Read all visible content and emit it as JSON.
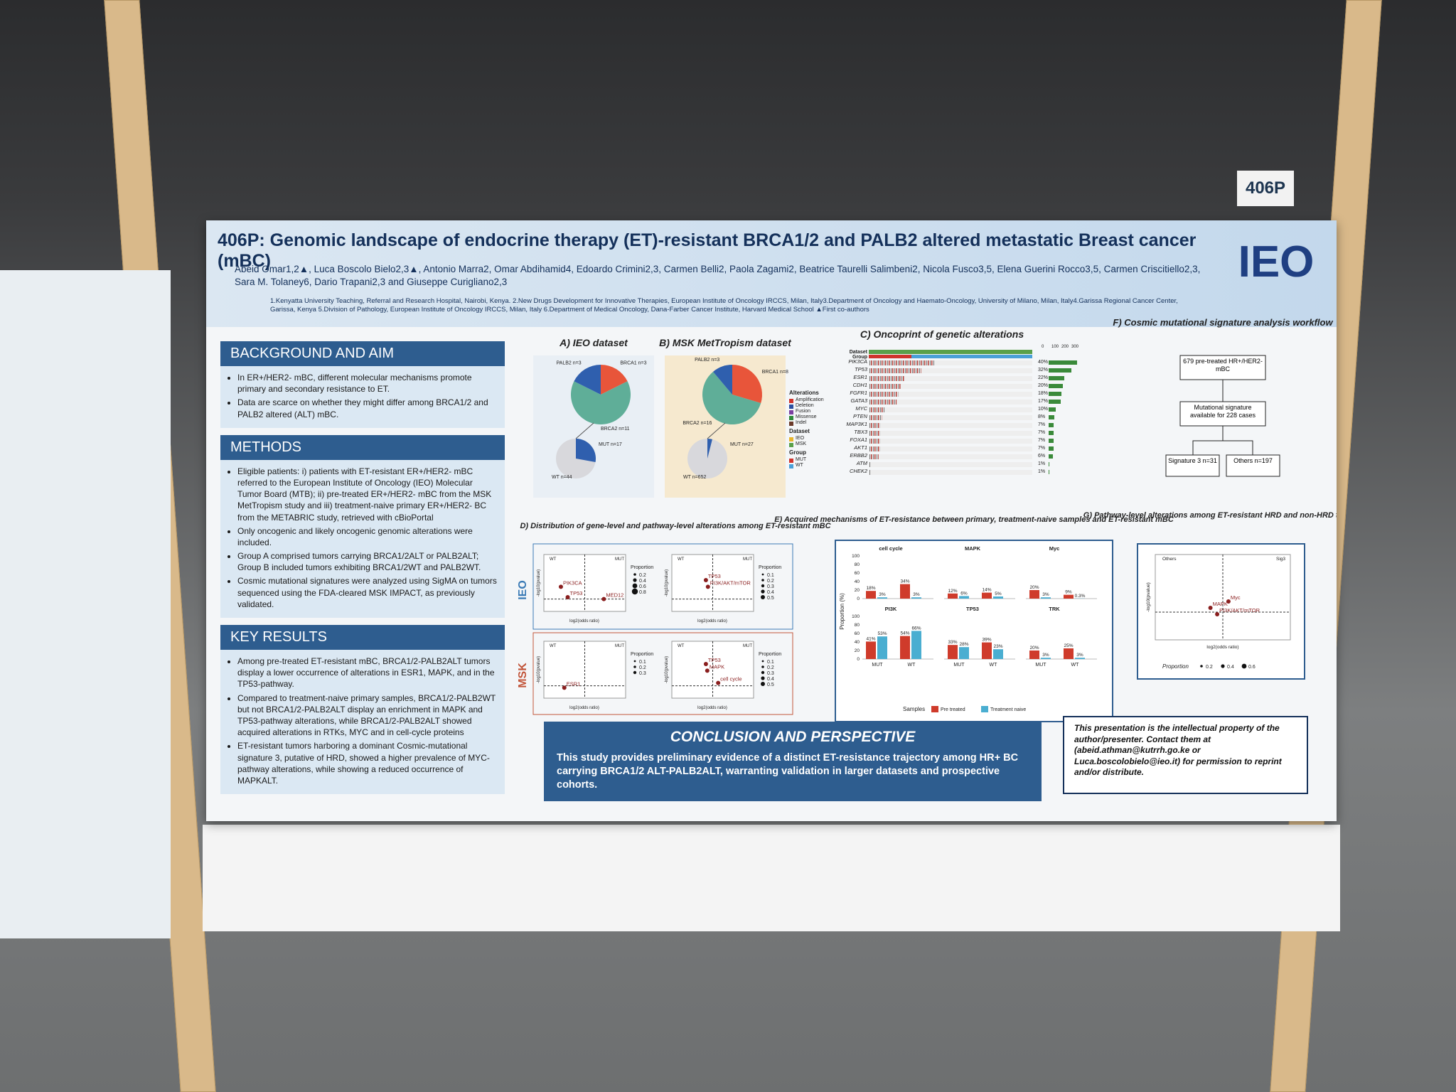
{
  "booth_label": "406P",
  "header": {
    "title": "406P: Genomic landscape of endocrine therapy (ET)-resistant BRCA1/2 and PALB2 altered metastatic Breast cancer (mBC)",
    "authors": "Abeid Omar1,2▲, Luca Boscolo Bielo2,3▲, Antonio Marra2, Omar Abdihamid4, Edoardo Crimini2,3, Carmen Belli2, Paola Zagami2, Beatrice Taurelli Salimbeni2, Nicola Fusco3,5, Elena Guerini Rocco3,5, Carmen Criscitiello2,3, Sara M. Tolaney6, Dario Trapani2,3 and Giuseppe Curigliano2,3",
    "affiliations": "1.Kenyatta University Teaching, Referral and Research Hospital, Nairobi, Kenya. 2.New Drugs Development for Innovative Therapies, European Institute of Oncology IRCCS, Milan, Italy3.Department of Oncology and Haemato-Oncology, University of Milano, Milan, Italy4.Garissa Regional Cancer Center, Garissa, Kenya 5.Division of Pathology, European Institute of Oncology IRCCS, Milan, Italy 6.Department of Medical Oncology, Dana-Farber Cancer Institute, Harvard Medical School ▲First co-authors",
    "logo": "IEO"
  },
  "sections": [
    {
      "heading": "BACKGROUND AND AIM",
      "bullets": [
        "In ER+/HER2- mBC, different molecular mechanisms promote primary and secondary resistance to ET.",
        "Data are scarce on whether they might differ among BRCA1/2 and PALB2 altered (ALT) mBC."
      ]
    },
    {
      "heading": "METHODS",
      "bullets": [
        "Eligible patients: i) patients with ET-resistant ER+/HER2- mBC referred to the European Institute of Oncology (IEO) Molecular Tumor Board (MTB); ii) pre-treated ER+/HER2- mBC from the MSK MetTropism study and iii) treatment-naive primary ER+/HER2- BC from the METABRIC study, retrieved with cBioPortal",
        "Only oncogenic and likely oncogenic genomic alterations were included.",
        "Group A comprised tumors carrying BRCA1/2ALT or PALB2ALT; Group B included tumors exhibiting BRCA1/2WT and PALB2WT.",
        "Cosmic mutational signatures were analyzed using SigMA on tumors sequenced using the FDA-cleared MSK IMPACT, as previously validated."
      ]
    },
    {
      "heading": "KEY RESULTS",
      "bullets": [
        "Among pre-treated ET-resistant mBC, BRCA1/2-PALB2ALT tumors display a lower occurrence of alterations in ESR1, MAPK, and in the TP53-pathway.",
        "Compared to treatment-naive primary samples, BRCA1/2-PALB2WT but not BRCA1/2-PALB2ALT display an enrichment in MAPK and TP53-pathway alterations, while BRCA1/2-PALB2ALT showed acquired alterations in RTKs, MYC and in cell-cycle proteins",
        "ET-resistant tumors harboring a dominant Cosmic-mutational signature 3, putative of HRD, showed a higher prevalence of MYC-pathway alterations, while showing a reduced occurrence of MAPKALT."
      ]
    }
  ],
  "pies": [
    {
      "title": "A) IEO dataset",
      "slices": [
        {
          "label": "BRCA1 n=3",
          "n": 3,
          "color": "#e8553a"
        },
        {
          "label": "BRCA2 n=11",
          "n": 11,
          "color": "#5fae98"
        },
        {
          "label": "PALB2 n=3",
          "n": 3,
          "color": "#2f5fae"
        }
      ],
      "mut": {
        "label": "MUT n=17",
        "n": 17
      },
      "wt": {
        "label": "WT n=44",
        "n": 44
      }
    },
    {
      "title": "B) MSK MetTropism dataset",
      "slices": [
        {
          "label": "BRCA1 n=8",
          "n": 8,
          "color": "#e8553a"
        },
        {
          "label": "BRCA2 n=16",
          "n": 16,
          "color": "#5fae98"
        },
        {
          "label": "PALB2 n=3",
          "n": 3,
          "color": "#2f5fae"
        }
      ],
      "mut": {
        "label": "MUT n=27",
        "n": 27
      },
      "wt": {
        "label": "WT n=652",
        "n": 652
      }
    }
  ],
  "oncoprint": {
    "title": "C) Oncoprint of genetic alterations",
    "row_labels": [
      "Dataset",
      "Group"
    ],
    "count_ticks": [
      "0",
      "100",
      "200",
      "300"
    ],
    "genes": [
      "PIK3CA",
      "TP53",
      "ESR1",
      "CDH1",
      "FGFR1",
      "GATA3",
      "MYC",
      "PTEN",
      "MAP3K1",
      "TBX3",
      "FOXA1",
      "AKT1",
      "ERBB2",
      "ATM",
      "CHEK2"
    ],
    "percents": [
      40,
      32,
      22,
      20,
      18,
      17,
      10,
      8,
      7,
      7,
      7,
      7,
      6,
      1,
      1
    ],
    "percent_labels": [
      "40%",
      "32%",
      "22%",
      "20%",
      "18%",
      "17%",
      "10%",
      "8%",
      "7%",
      "7%",
      "7%",
      "7%",
      "6%",
      "1%",
      "1%"
    ],
    "legends": [
      {
        "title": "Alterations",
        "items": [
          {
            "name": "Amplification",
            "color": "#d0342c"
          },
          {
            "name": "Deletion",
            "color": "#2c4fa0"
          },
          {
            "name": "Fusion",
            "color": "#7a3fa0"
          },
          {
            "name": "Missense",
            "color": "#2f8a3a"
          },
          {
            "name": "Indel",
            "color": "#6b3a2a"
          }
        ]
      },
      {
        "title": "Dataset",
        "items": [
          {
            "name": "IEO",
            "color": "#e8b52c"
          },
          {
            "name": "MSK",
            "color": "#5aa04a"
          }
        ]
      },
      {
        "title": "Group",
        "items": [
          {
            "name": "MUT",
            "color": "#d0342c"
          },
          {
            "name": "WT",
            "color": "#4aa0d8"
          }
        ]
      }
    ]
  },
  "workflow": {
    "title": "F) Cosmic mutational signature analysis workflow",
    "nodes": [
      "679 pre-treated HR+/HER2- mBC",
      "Mutational signature available for 228 cases",
      "Signature 3 n=31",
      "Others n=197"
    ]
  },
  "volcano": {
    "title": "D) Distribution of gene-level and pathway-level alterations among ET-resistant mBC",
    "rows": [
      "IEO",
      "MSK"
    ],
    "left": "WT",
    "right": "MUT",
    "xlabel": "log2(odds ratio)",
    "ylabel": "-log10(pvalue)",
    "size_title": "Proportion",
    "xlim": [
      -6,
      6
    ],
    "ylim": [
      0,
      6
    ],
    "panels": [
      {
        "points": [
          {
            "label": "PIK3CA",
            "x": -3.5,
            "y": 2.6
          },
          {
            "label": "TP53",
            "x": -2.5,
            "y": 1.5
          },
          {
            "label": "MED12",
            "x": 2.8,
            "y": 1.3
          }
        ],
        "sizes": [
          0.2,
          0.4,
          0.6,
          0.8
        ]
      },
      {
        "points": [
          {
            "label": "TP53",
            "x": -1,
            "y": 3.3
          },
          {
            "label": "PI3K/AKT/mTOR",
            "x": -0.7,
            "y": 2.6
          }
        ],
        "sizes": [
          0.1,
          0.2,
          0.3,
          0.4,
          0.5
        ]
      },
      {
        "points": [
          {
            "label": "ESR1",
            "x": -3,
            "y": 1.1
          }
        ],
        "sizes": [
          0.1,
          0.2,
          0.3
        ]
      },
      {
        "points": [
          {
            "label": "TP53",
            "x": -1,
            "y": 3.6
          },
          {
            "label": "MAPK",
            "x": -0.8,
            "y": 2.9
          },
          {
            "label": "cell cycle",
            "x": 0.8,
            "y": 1.6
          }
        ],
        "sizes": [
          0.1,
          0.2,
          0.3,
          0.4,
          0.5
        ]
      }
    ]
  },
  "chart_data": {
    "type": "bar",
    "title": "E) Acquired mechanisms of ET-resistance between primary, treatment-naive samples and ET-resistant mBC",
    "ylabel": "Proportion (%)",
    "categories": [
      "MUT",
      "WT"
    ],
    "ylim": [
      0,
      100
    ],
    "yticks": [
      0,
      20,
      40,
      60,
      80,
      100
    ],
    "legend_title": "Samples",
    "series": [
      {
        "name": "Pre treated",
        "color": "#cf3b2b"
      },
      {
        "name": "Treatment naive",
        "color": "#4aaed1"
      }
    ],
    "facets": [
      {
        "name": "cell cycle",
        "values": [
          [
            18,
            34
          ],
          [
            3,
            3
          ]
        ],
        "value_labels": [
          [
            "18%",
            "34%"
          ],
          [
            "3%",
            "3%"
          ]
        ]
      },
      {
        "name": "MAPK",
        "values": [
          [
            12,
            14
          ],
          [
            6,
            5
          ]
        ],
        "value_labels": [
          [
            "12%",
            "14%"
          ],
          [
            "6%",
            "5%"
          ]
        ]
      },
      {
        "name": "Myc",
        "values": [
          [
            20,
            9
          ],
          [
            3,
            0.3
          ]
        ],
        "value_labels": [
          [
            "20%",
            "9%"
          ],
          [
            "3%",
            "0.3%"
          ]
        ]
      },
      {
        "name": "PI3K",
        "values": [
          [
            41,
            54
          ],
          [
            53,
            66
          ]
        ],
        "value_labels": [
          [
            "41%",
            "54%"
          ],
          [
            "53%",
            "66%"
          ]
        ]
      },
      {
        "name": "TP53",
        "values": [
          [
            33,
            39
          ],
          [
            28,
            23
          ]
        ],
        "value_labels": [
          [
            "33%",
            "39%"
          ],
          [
            "28%",
            "23%"
          ]
        ]
      },
      {
        "name": "TRK",
        "values": [
          [
            20,
            25
          ],
          [
            3,
            3
          ]
        ],
        "value_labels": [
          [
            "20%",
            "25%"
          ],
          [
            "3%",
            "3%"
          ]
        ]
      }
    ]
  },
  "pathway": {
    "title": "G) Pathway-level alterations among ET-resistant HRD and non-HRD tumors",
    "left": "Others",
    "right": "Sig3",
    "xlabel": "log2(odds ratio)",
    "ylabel": "-log10(pvalue)",
    "size_title": "Proportion",
    "xlim": [
      -6,
      6
    ],
    "ylim": [
      0,
      4
    ],
    "points": [
      {
        "label": "MAPK",
        "x": -1.1,
        "y": 1.5
      },
      {
        "label": "PI3K/AKT/mTOR",
        "x": -0.5,
        "y": 1.2
      },
      {
        "label": "Myc",
        "x": 0.5,
        "y": 1.8
      }
    ],
    "sizes": [
      0.2,
      0.4,
      0.6
    ]
  },
  "conclusion": {
    "heading": "CONCLUSION AND PERSPECTIVE",
    "text": "This study provides preliminary evidence of a distinct ET-resistance trajectory among HR+ BC carrying BRCA1/2 ALT-PALB2ALT, warranting validation in larger datasets and prospective cohorts."
  },
  "notice": "This presentation is the intellectual property of the author/presenter. Contact them at (abeid.athman@kutrrh.go.ke or Luca.boscolobielo@ieo.it) for permission to reprint and/or distribute."
}
